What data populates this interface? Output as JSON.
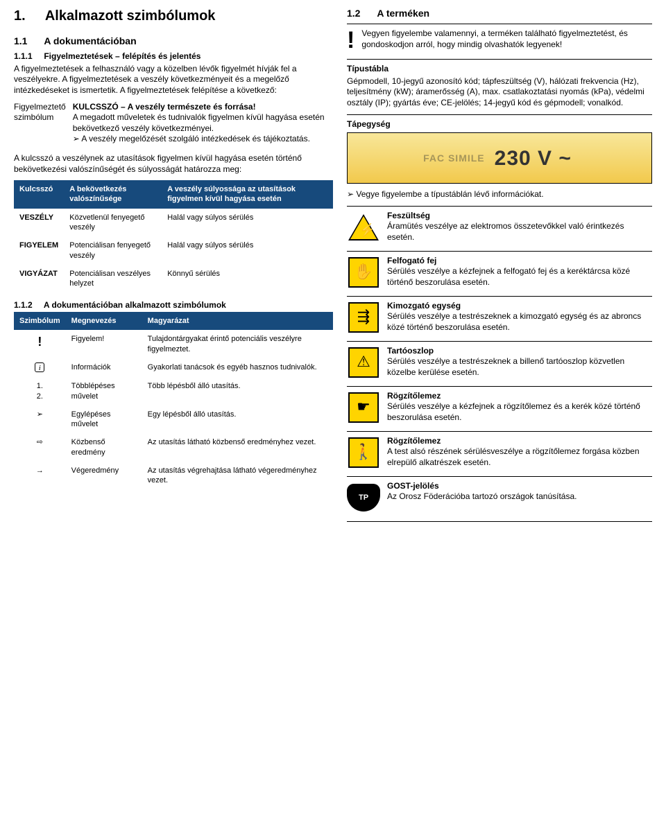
{
  "left": {
    "h1_num": "1.",
    "h1_txt": "Alkalmazott szimbólumok",
    "s11_num": "1.1",
    "s11_txt": "A dokumentációban",
    "s111_num": "1.1.1",
    "s111_txt": "Figyelmeztetések – felépítés és jelentés",
    "p1": "A figyelmeztetések a felhasználó vagy a közelben lévők figyelmét hívják fel a veszélyekre. A figyelmeztetések a veszély következményeit és a megelőző intézkedéseket is ismertetik. A figyelmeztetések felépítése a következő:",
    "sym_lbl": "Figyelmeztető szimbólum",
    "sym_l1": "KULCSSZÓ – A veszély természete és forrása!",
    "sym_l2": "A megadott műveletek és tudnivalók figyelmen kívül hagyása esetén bekövetkező veszély következményei.",
    "sym_l3": "➢  A veszély megelőzését szolgáló intézkedések és tájékoztatás.",
    "p2": "A kulcsszó a veszélynek az utasítások figyelmen kívül hagyása esetén történő bekövetkezési valószínűségét és súlyosságát határozza meg:",
    "t1": {
      "h1": "Kulcsszó",
      "h2": "A bekövetkezés valószínűsége",
      "h3": "A veszély súlyossága az utasítások figyelmen kívül hagyása esetén",
      "rows": [
        {
          "c1": "VESZÉLY",
          "c2": "Közvetlenül fenyegető veszély",
          "c3": "Halál vagy súlyos sérülés"
        },
        {
          "c1": "FIGYELEM",
          "c2": "Potenciálisan fenyegető veszély",
          "c3": "Halál vagy súlyos sérülés"
        },
        {
          "c1": "VIGYÁZAT",
          "c2": "Potenciálisan veszélyes helyzet",
          "c3": "Könnyű sérülés"
        }
      ]
    },
    "s112_num": "1.1.2",
    "s112_txt": "A dokumentációban alkalmazott szimbólumok",
    "t2": {
      "h1": "Szimbólum",
      "h2": "Megnevezés",
      "h3": "Magyarázat",
      "rows": [
        {
          "sym": "!",
          "c2": "Figyelem!",
          "c3": "Tulajdontárgyakat érintő potenciális veszélyre figyelmeztet."
        },
        {
          "sym": "i",
          "c2": "Információk",
          "c3": "Gyakorlati tanácsok és egyéb hasznos tudnivalók."
        },
        {
          "sym": "1.\n2.",
          "c2": "Többlépéses művelet",
          "c3": "Több lépésből álló utasítás."
        },
        {
          "sym": "➢",
          "c2": "Egylépéses művelet",
          "c3": "Egy lépésből álló utasítás."
        },
        {
          "sym": "⇨",
          "c2": "Közbenső eredmény",
          "c3": "Az utasítás látható közbenső eredményhez vezet."
        },
        {
          "sym": "→",
          "c2": "Végeredmény",
          "c3": "Az utasítás végrehajtása látható végeredményhez vezet."
        }
      ]
    }
  },
  "right": {
    "s12_num": "1.2",
    "s12_txt": "A terméken",
    "top_note": "Vegyen figyelembe valamennyi, a terméken található figyelmeztetést, és gondoskodjon arról, hogy mindig olvashatók legyenek!",
    "tip_h": "Típustábla",
    "tip_p": "Gépmodell, 10-jegyű azonosító kód; tápfeszültség (V), hálózati frekvencia (Hz), teljesítmény (kW); áramerősség (A), max. csatlakoztatási nyomás (kPa), védelmi osztály (IP); gyártás éve; CE-jelölés; 14-jegyű kód és gépmodell; vonalkód.",
    "tap_h": "Tápegység",
    "tap_label": "230 V ~",
    "tap_fac": "FAC SIMILE",
    "tap_note": "➢  Vegye figyelembe a típustáblán lévő információkat.",
    "hazards": [
      {
        "icon": "bolt",
        "title": "Feszültség",
        "text": "Áramütés veszélye az elektromos összetevőkkel való érintkezés esetén."
      },
      {
        "icon": "sq",
        "glyph": "✋",
        "title": "Felfogató fej",
        "text": "Sérülés veszélye a kézfejnek a felfogató fej és a keréktárcsa közé történő beszorulása esetén."
      },
      {
        "icon": "sq",
        "glyph": "⇶",
        "title": "Kimozgató egység",
        "text": "Sérülés veszélye a testrészeknek a kimozgató egység és az abroncs közé történő beszorulása esetén."
      },
      {
        "icon": "sq",
        "glyph": "⚠",
        "title": "Tartóoszlop",
        "text": "Sérülés veszélye a testrészeknek a billenő tartóoszlop közvetlen közelbe kerülése esetén."
      },
      {
        "icon": "sq",
        "glyph": "☛",
        "title": "Rögzítőlemez",
        "text": "Sérülés veszélye a kézfejnek a rögzítőlemez és a kerék közé történő beszorulása esetén."
      },
      {
        "icon": "sq",
        "glyph": "🚶",
        "title": "Rögzítőlemez",
        "text": "A test alsó részének sérülésveszélye a rögzítőlemez forgása közben elrepülő alkatrészek esetén."
      },
      {
        "icon": "gost",
        "glyph": "TP",
        "title": "GOST-jelölés",
        "text": "Az Orosz Föderációba tartozó országok tanúsítása."
      }
    ]
  }
}
